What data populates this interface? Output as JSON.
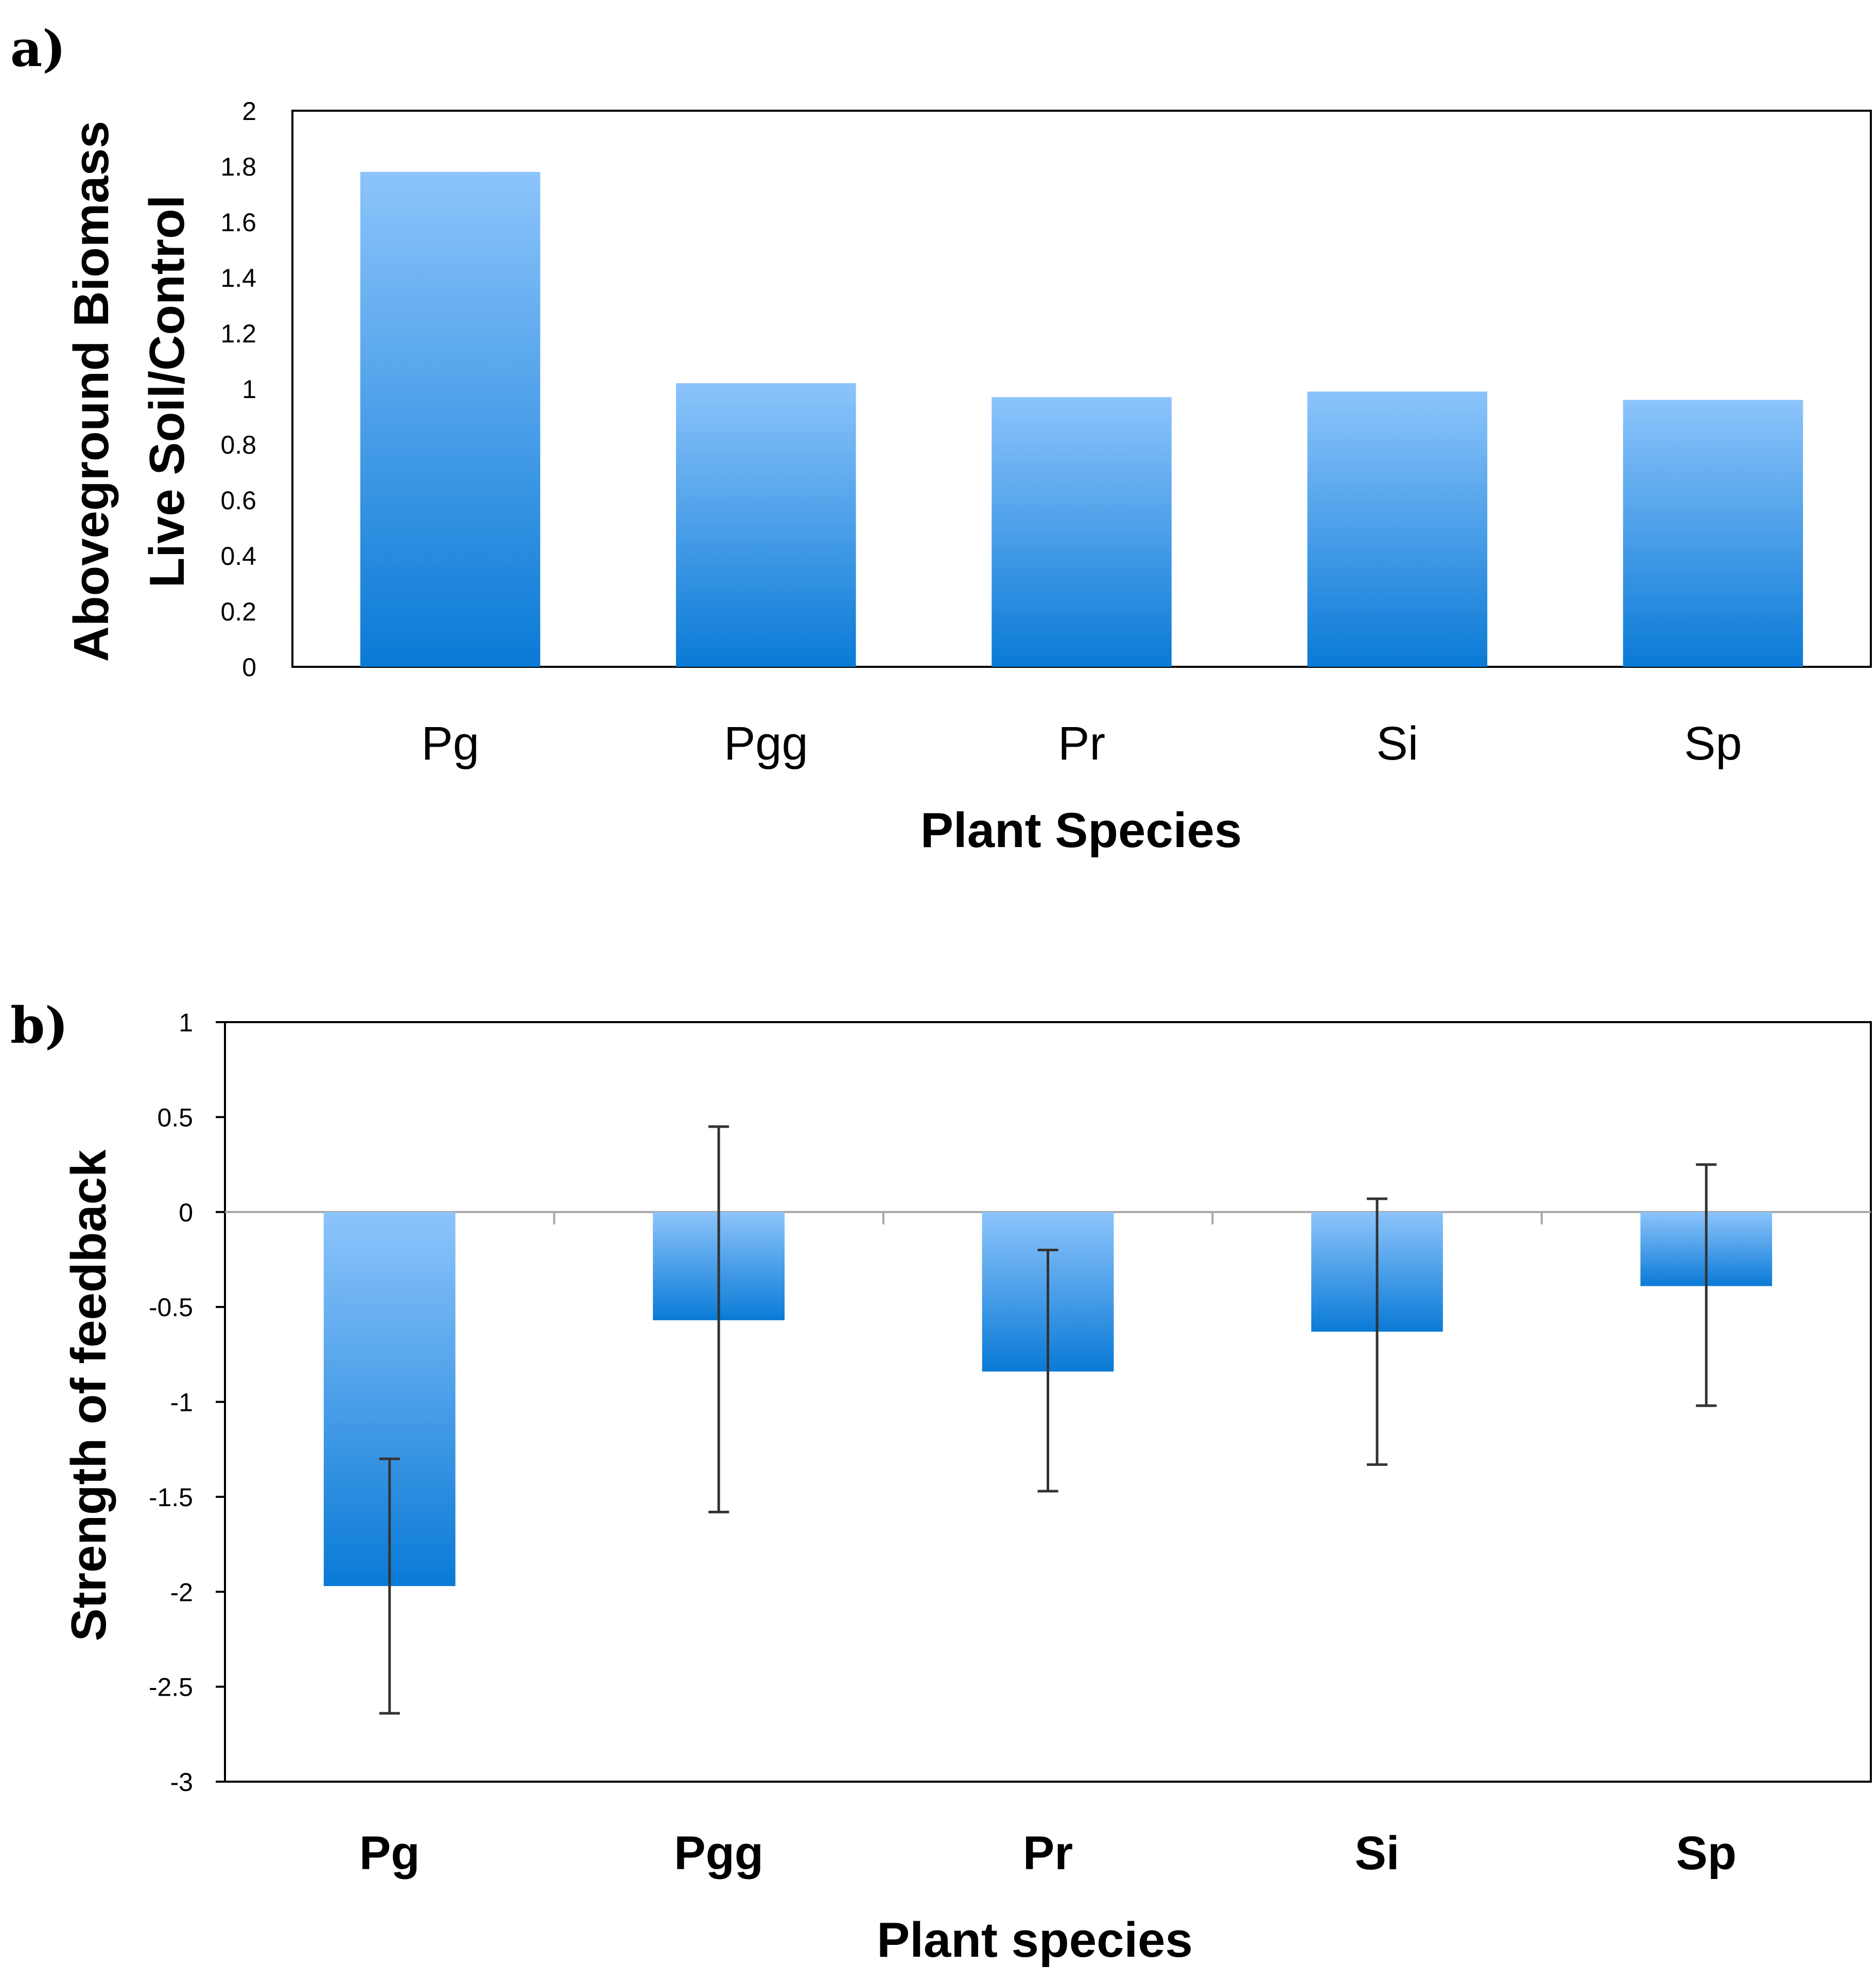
{
  "chart_data": [
    {
      "panel_label": "a)",
      "type": "bar",
      "categories": [
        "Pg",
        "Pgg",
        "Pr",
        "Si",
        "Sp"
      ],
      "values": [
        1.78,
        1.02,
        0.97,
        0.99,
        0.96
      ],
      "xlabel": "Plant Species",
      "ylabel_lines": [
        "Aboveground Biomass",
        "Live Soil/Control"
      ],
      "ylim": [
        0,
        2
      ],
      "yticks": [
        0,
        0.2,
        0.4,
        0.6,
        0.8,
        1,
        1.2,
        1.4,
        1.6,
        1.8,
        2
      ],
      "ytick_labels": [
        "0",
        "0.2",
        "0.4",
        "0.6",
        "0.8",
        "1",
        "1.2",
        "1.4",
        "1.6",
        "1.8",
        "2"
      ],
      "grid": false,
      "colors": {
        "bar_top": "#8cc4fb",
        "bar_bottom": "#0a7ad6",
        "frame": "#000000"
      }
    },
    {
      "panel_label": "b)",
      "type": "bar",
      "categories": [
        "Pg",
        "Pgg",
        "Pr",
        "Si",
        "Sp"
      ],
      "values": [
        -1.97,
        -0.57,
        -0.84,
        -0.63,
        -0.39
      ],
      "error_low": [
        -2.64,
        -1.58,
        -1.47,
        -1.33,
        -1.02
      ],
      "error_high": [
        -1.3,
        0.45,
        -0.2,
        0.07,
        0.25
      ],
      "xlabel": "Plant species",
      "ylabel": "Strength of feedback",
      "ylim": [
        -3,
        1
      ],
      "yticks": [
        1,
        0.5,
        0,
        -0.5,
        -1,
        -1.5,
        -2,
        -2.5,
        -3
      ],
      "ytick_labels": [
        "1",
        "0.5",
        "0",
        "-0.5",
        "-1",
        "-1.5",
        "-2",
        "-2.5",
        "-3"
      ],
      "grid": false,
      "colors": {
        "bar_top": "#8cc4fb",
        "bar_bottom": "#0a7ad6",
        "frame": "#000000",
        "zero_line": "#a6a6a6",
        "error_bar": "#333333"
      }
    }
  ]
}
